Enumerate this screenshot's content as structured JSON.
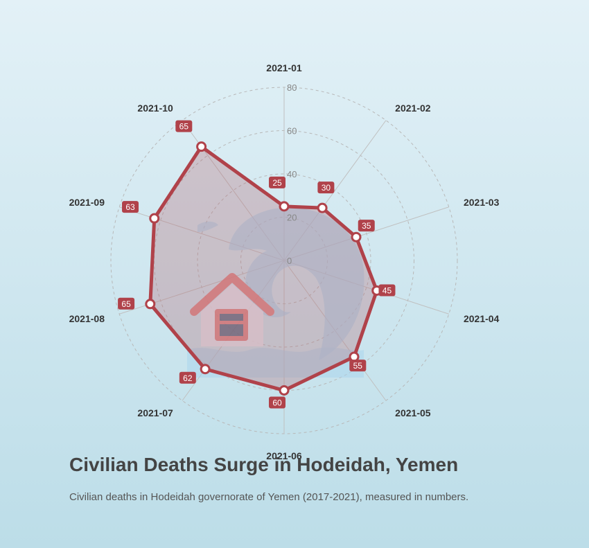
{
  "header": {
    "title": "Civilian Deaths Surge in Hodeidah, Yemen",
    "subtitle": "Civilian deaths in Hodeidah governorate of Yemen (2017-2021), measured in numbers."
  },
  "colors": {
    "series_line": "#b0424a",
    "series_fill": "#b4626e",
    "badge": "#b0424a",
    "wave": "#a9d3ec",
    "house_roof": "#e07f7f",
    "house_wall": "#e6e7ef"
  },
  "icons": [
    "wave-flood-icon",
    "house-icon"
  ],
  "chart_data": {
    "type": "radar",
    "categories": [
      "2021-01",
      "2021-02",
      "2021-03",
      "2021-04",
      "2021-05",
      "2021-06",
      "2021-07",
      "2021-08",
      "2021-09",
      "2021-10"
    ],
    "values": [
      25,
      30,
      35,
      45,
      55,
      60,
      62,
      65,
      63,
      65
    ],
    "rlim": [
      0,
      80
    ],
    "rticks": [
      0,
      20,
      40,
      60,
      80
    ],
    "grid": true,
    "title": "Civilian Deaths Surge in Hodeidah, Yemen",
    "subtitle": "Civilian deaths in Hodeidah governorate of Yemen (2017-2021), measured in numbers."
  }
}
